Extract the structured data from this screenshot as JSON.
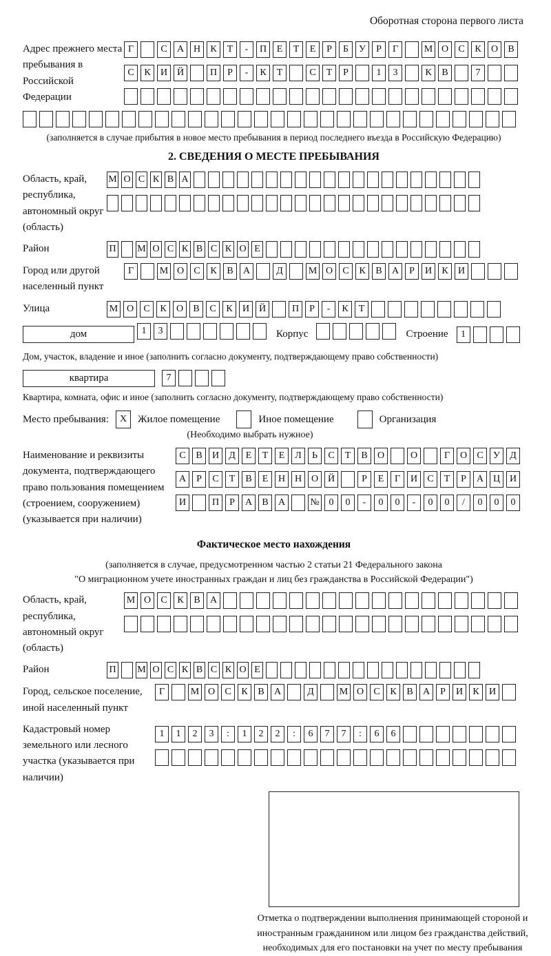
{
  "header_note": "Оборотная сторона первого листа",
  "prev_address": {
    "label": "Адрес прежнего места пребывания в Российской Федерации",
    "rows": [
      [
        "Г",
        "",
        "С",
        "А",
        "Н",
        "К",
        "Т",
        "-",
        "П",
        "Е",
        "Т",
        "Е",
        "Р",
        "Б",
        "У",
        "Р",
        "Г",
        "",
        "М",
        "О",
        "С",
        "К",
        "О",
        "В"
      ],
      [
        "С",
        "К",
        "И",
        "Й",
        "",
        "П",
        "Р",
        "-",
        "К",
        "Т",
        "",
        "С",
        "Т",
        "Р",
        "",
        "1",
        "3",
        "",
        "К",
        "В",
        "",
        "7",
        "",
        ""
      ],
      [
        "",
        "",
        "",
        "",
        "",
        "",
        "",
        "",
        "",
        "",
        "",
        "",
        "",
        "",
        "",
        "",
        "",
        "",
        "",
        "",
        "",
        "",
        "",
        ""
      ]
    ],
    "full_row": [
      "",
      "",
      "",
      "",
      "",
      "",
      "",
      "",
      "",
      "",
      "",
      "",
      "",
      "",
      "",
      "",
      "",
      "",
      "",
      "",
      "",
      "",
      "",
      "",
      "",
      "",
      "",
      "",
      "",
      ""
    ],
    "caption": "(заполняется в случае прибытия в новое место пребывания в период последнего въезда в Российскую Федерацию)"
  },
  "section2": {
    "title": "2. СВЕДЕНИЯ О МЕСТЕ ПРЕБЫВАНИЯ",
    "region": {
      "label": "Область, край, республика, автономный округ (область)",
      "rows": [
        [
          "М",
          "О",
          "С",
          "К",
          "В",
          "А",
          "",
          "",
          "",
          "",
          "",
          "",
          "",
          "",
          "",
          "",
          "",
          "",
          "",
          "",
          "",
          "",
          "",
          "",
          "",
          ""
        ],
        [
          "",
          "",
          "",
          "",
          "",
          "",
          "",
          "",
          "",
          "",
          "",
          "",
          "",
          "",
          "",
          "",
          "",
          "",
          "",
          "",
          "",
          "",
          "",
          "",
          "",
          ""
        ]
      ]
    },
    "district": {
      "label": "Район",
      "row": [
        "П",
        "",
        "М",
        "О",
        "С",
        "К",
        "В",
        "С",
        "К",
        "О",
        "Е",
        "",
        "",
        "",
        "",
        "",
        "",
        "",
        "",
        "",
        "",
        "",
        "",
        "",
        "",
        ""
      ]
    },
    "city": {
      "label": "Город или другой населенный пункт",
      "row": [
        "Г",
        "",
        "М",
        "О",
        "С",
        "К",
        "В",
        "А",
        "",
        "Д",
        "",
        "М",
        "О",
        "С",
        "К",
        "В",
        "А",
        "Р",
        "И",
        "К",
        "И",
        "",
        "",
        ""
      ]
    },
    "street": {
      "label": "Улица",
      "row": [
        "М",
        "О",
        "С",
        "К",
        "О",
        "В",
        "С",
        "К",
        "И",
        "Й",
        "",
        "П",
        "Р",
        "-",
        "К",
        "Т",
        "",
        "",
        "",
        "",
        "",
        "",
        "",
        ""
      ]
    },
    "house": {
      "box_label": "дом",
      "cells": [
        "1",
        "3",
        "",
        "",
        "",
        "",
        "",
        ""
      ],
      "korpus_label": "Корпус",
      "korpus_cells": [
        "",
        "",
        "",
        "",
        ""
      ],
      "stroenie_label": "Строение",
      "stroenie_cells": [
        "1",
        "",
        "",
        ""
      ]
    },
    "house_caption": "Дом, участок, владение и иное (заполнить согласно документу, подтверждающему право собственности)",
    "apartment": {
      "box_label": "квартира",
      "cells": [
        "7",
        "",
        "",
        ""
      ]
    },
    "apartment_caption": "Квартира, комната, офис и иное (заполнить согласно документу, подтверждающему право собственности)",
    "stay_type": {
      "label": "Место пребывания:",
      "options": [
        {
          "checked": "X",
          "label": "Жилое помещение"
        },
        {
          "checked": "",
          "label": "Иное помещение"
        },
        {
          "checked": "",
          "label": "Организация"
        }
      ],
      "note": "(Необходимо выбрать нужное)"
    }
  },
  "document_block": {
    "label": "Наименование и реквизиты документа, подтверждающего право пользования помещением (строением, сооружением) (указывается при наличии)",
    "rows": [
      [
        "С",
        "В",
        "И",
        "Д",
        "Е",
        "Т",
        "Е",
        "Л",
        "Ь",
        "С",
        "Т",
        "В",
        "О",
        "",
        "О",
        "",
        "Г",
        "О",
        "С",
        "У",
        "Д"
      ],
      [
        "А",
        "Р",
        "С",
        "Т",
        "В",
        "Е",
        "Н",
        "Н",
        "О",
        "Й",
        "",
        "Р",
        "Е",
        "Г",
        "И",
        "С",
        "Т",
        "Р",
        "А",
        "Ц",
        "И"
      ],
      [
        "И",
        "",
        "П",
        "Р",
        "А",
        "В",
        "А",
        "",
        "№",
        "0",
        "0",
        "-",
        "0",
        "0",
        "-",
        "0",
        "0",
        "/",
        "0",
        "0",
        "0"
      ]
    ]
  },
  "actual_location": {
    "title": "Фактическое место нахождения",
    "caption_line1": "(заполняется в случае, предусмотренном частью 2 статьи 21 Федерального закона",
    "caption_line2": "\"О миграционном учете иностранных граждан и лиц без гражданства в Российской Федерации\")",
    "region": {
      "label": "Область, край, республика, автономный округ (область)",
      "rows": [
        [
          "М",
          "О",
          "С",
          "К",
          "В",
          "А",
          "",
          "",
          "",
          "",
          "",
          "",
          "",
          "",
          "",
          "",
          "",
          "",
          "",
          "",
          "",
          "",
          "",
          ""
        ],
        [
          "",
          "",
          "",
          "",
          "",
          "",
          "",
          "",
          "",
          "",
          "",
          "",
          "",
          "",
          "",
          "",
          "",
          "",
          "",
          "",
          "",
          "",
          "",
          ""
        ]
      ]
    },
    "district": {
      "label": "Район",
      "row": [
        "П",
        "",
        "М",
        "О",
        "С",
        "К",
        "В",
        "С",
        "К",
        "О",
        "Е",
        "",
        "",
        "",
        "",
        "",
        "",
        "",
        "",
        "",
        "",
        "",
        "",
        "",
        "",
        ""
      ]
    },
    "city": {
      "label": "Город, сельское поселение, иной населенный пункт",
      "row": [
        "Г",
        "",
        "М",
        "О",
        "С",
        "К",
        "В",
        "А",
        "",
        "Д",
        "",
        "М",
        "О",
        "С",
        "К",
        "В",
        "А",
        "Р",
        "И",
        "К",
        "И",
        ""
      ]
    },
    "cadastral": {
      "label": "Кадастровый номер земельного или лесного участка (указывается при наличии)",
      "rows": [
        [
          "1",
          "1",
          "2",
          "3",
          ":",
          "1",
          "2",
          "2",
          ":",
          "6",
          "7",
          "7",
          ":",
          "6",
          "6",
          "",
          "",
          "",
          "",
          "",
          "",
          ""
        ],
        [
          "",
          "",
          "",
          "",
          "",
          "",
          "",
          "",
          "",
          "",
          "",
          "",
          "",
          "",
          "",
          "",
          "",
          "",
          "",
          "",
          "",
          ""
        ]
      ]
    }
  },
  "stamp": {
    "caption": "Отметка о подтверждении выполнения принимающей стороной и иностранным гражданином или лицом без гражданства действий, необходимых для его постановки на учет по месту пребывания"
  }
}
